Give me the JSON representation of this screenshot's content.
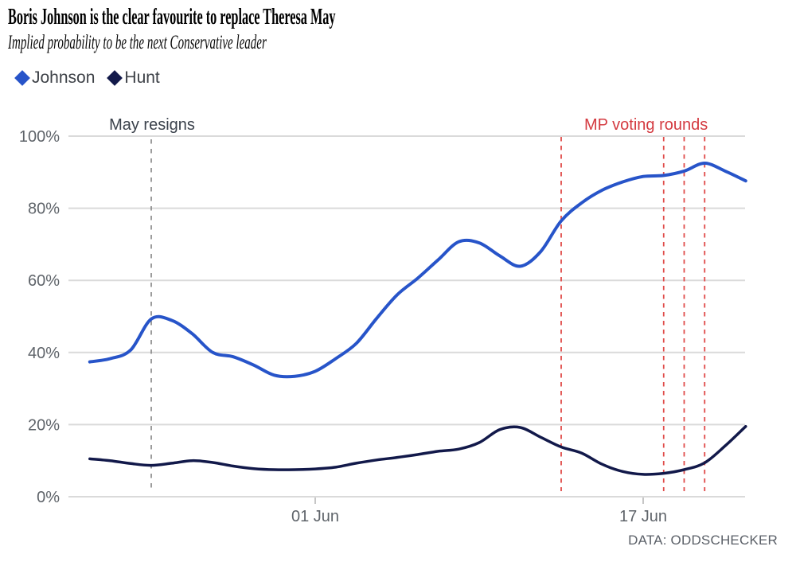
{
  "header": {
    "title": "Boris Johnson is the clear favourite to replace Theresa May",
    "subtitle": "Implied probability to be the next Conservative leader"
  },
  "legend": [
    {
      "label": "Johnson",
      "color": "#2754c9"
    },
    {
      "label": "Hunt",
      "color": "#12194a"
    }
  ],
  "source": "DATA: ODDSCHECKER",
  "colors": {
    "grid": "#dadada",
    "axis_text": "#5f646a",
    "tick_mark": "#c6c6c6",
    "red_line": "#e04a48",
    "red_text": "#d43a40",
    "resign_line": "#8b8b8b",
    "resign_text": "#3a414b"
  },
  "chart_data": {
    "type": "line",
    "title": "Boris Johnson is the clear favourite to replace Theresa May",
    "subtitle": "Implied probability to be the next Conservative leader",
    "ylim": [
      0,
      100
    ],
    "y_ticks": [
      "0%",
      "20%",
      "40%",
      "60%",
      "80%",
      "100%"
    ],
    "grid": "horizontal",
    "legend_position": "top-left",
    "x": [
      "21 May",
      "22 May",
      "23 May",
      "24 May",
      "25 May",
      "26 May",
      "27 May",
      "28 May",
      "29 May",
      "30 May",
      "31 May",
      "01 Jun",
      "02 Jun",
      "03 Jun",
      "04 Jun",
      "05 Jun",
      "06 Jun",
      "07 Jun",
      "08 Jun",
      "09 Jun",
      "10 Jun",
      "11 Jun",
      "12 Jun",
      "13 Jun",
      "14 Jun",
      "15 Jun",
      "16 Jun",
      "17 Jun",
      "18 Jun",
      "19 Jun",
      "20 Jun",
      "21 Jun",
      "22 Jun"
    ],
    "x_ticks": [
      "01 Jun",
      "17 Jun"
    ],
    "series": [
      {
        "name": "Johnson",
        "color": "#2754c9",
        "values": [
          37.4,
          38.3,
          40.7,
          49.3,
          48.9,
          45.2,
          40.0,
          38.8,
          36.5,
          33.7,
          33.4,
          34.8,
          38.3,
          42.5,
          49.5,
          56.0,
          60.6,
          65.7,
          70.7,
          70.4,
          66.8,
          63.9,
          68.0,
          76.5,
          81.5,
          85.0,
          87.3,
          88.8,
          89.1,
          90.3,
          92.5,
          90.3,
          87.6
        ]
      },
      {
        "name": "Hunt",
        "color": "#12194a",
        "values": [
          10.5,
          10.0,
          9.2,
          8.7,
          9.3,
          10.0,
          9.5,
          8.5,
          7.8,
          7.5,
          7.5,
          7.7,
          8.2,
          9.3,
          10.2,
          10.9,
          11.7,
          12.6,
          13.2,
          15.0,
          18.6,
          19.2,
          16.5,
          13.8,
          12.1,
          9.0,
          7.0,
          6.2,
          6.5,
          7.5,
          9.4,
          14.1,
          19.5
        ]
      }
    ],
    "annotations": {
      "may_resigns": {
        "label": "May resigns",
        "date": "24 May"
      },
      "voting_rounds": {
        "label": "MP voting rounds",
        "dates": [
          "13 Jun",
          "18 Jun",
          "19 Jun",
          "20 Jun"
        ]
      }
    }
  }
}
